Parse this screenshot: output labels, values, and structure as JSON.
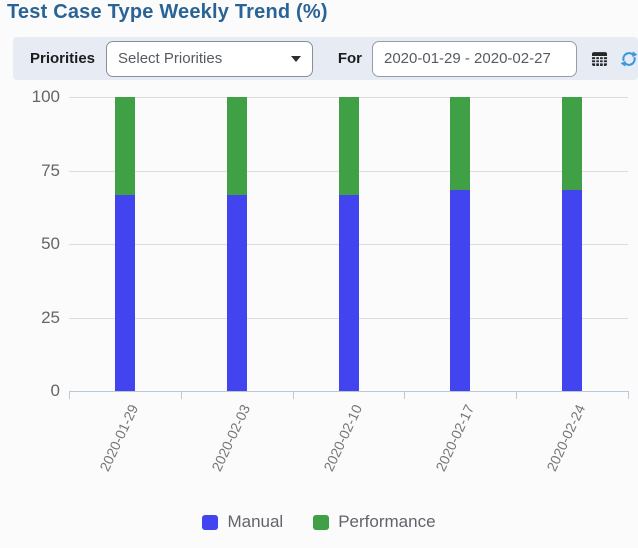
{
  "header": {
    "title": "Test Case Type Weekly Trend (%)",
    "title_color": "#2a6496"
  },
  "toolbar": {
    "priorities_label": "Priorities",
    "priorities_value": "Select Priorities",
    "for_label": "For",
    "date_range": "2020-01-29 - 2020-02-27",
    "icons": {
      "calendar_icon_color": "#262626",
      "refresh_icon_color": "#3b99dd"
    },
    "background": "#e7ecf4"
  },
  "chart_data": {
    "type": "bar",
    "stacked": true,
    "title": "Test Case Type Weekly Trend (%)",
    "categories": [
      "2020-01-29",
      "2020-02-03",
      "2020-02-10",
      "2020-02-17",
      "2020-02-24"
    ],
    "series": [
      {
        "name": "Manual",
        "color": "#4244ef",
        "values": [
          66.7,
          66.7,
          66.7,
          68.4,
          68.4
        ]
      },
      {
        "name": "Performance",
        "color": "#3fa046",
        "values": [
          33.3,
          33.3,
          33.3,
          31.6,
          31.6
        ]
      }
    ],
    "xlabel": "",
    "ylabel": "",
    "ylim": [
      0,
      100
    ],
    "yticks": [
      0,
      25,
      50,
      75,
      100
    ],
    "grid": true,
    "gridline_color": "#dcdcdc",
    "axis_color": "#b7c9d8",
    "legend_position": "bottom"
  }
}
